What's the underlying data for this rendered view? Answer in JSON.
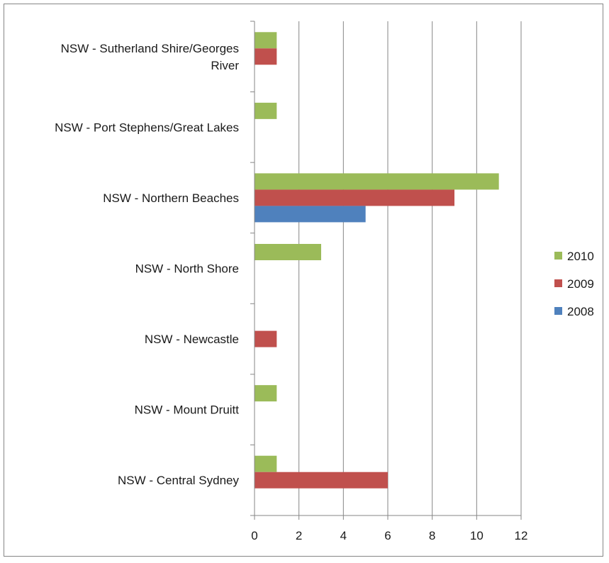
{
  "chart_data": {
    "type": "bar",
    "orientation": "horizontal",
    "categories": [
      "NSW - Central Sydney",
      "NSW - Mount Druitt",
      "NSW - Newcastle",
      "NSW - North Shore",
      "NSW - Northern Beaches",
      "NSW - Port Stephens/Great Lakes",
      "NSW - Sutherland Shire/Georges River"
    ],
    "series": [
      {
        "name": "2010",
        "color": "#9BBB59",
        "values": [
          1,
          1,
          0,
          3,
          11,
          1,
          1
        ]
      },
      {
        "name": "2009",
        "color": "#C0504D",
        "values": [
          6,
          0,
          1,
          0,
          9,
          0,
          1
        ]
      },
      {
        "name": "2008",
        "color": "#4F81BD",
        "values": [
          0,
          0,
          0,
          0,
          5,
          0,
          0
        ]
      }
    ],
    "xlim": [
      0,
      12
    ],
    "xticks": [
      0,
      2,
      4,
      6,
      8,
      10,
      12
    ],
    "grid": true,
    "legend_position": "right"
  }
}
